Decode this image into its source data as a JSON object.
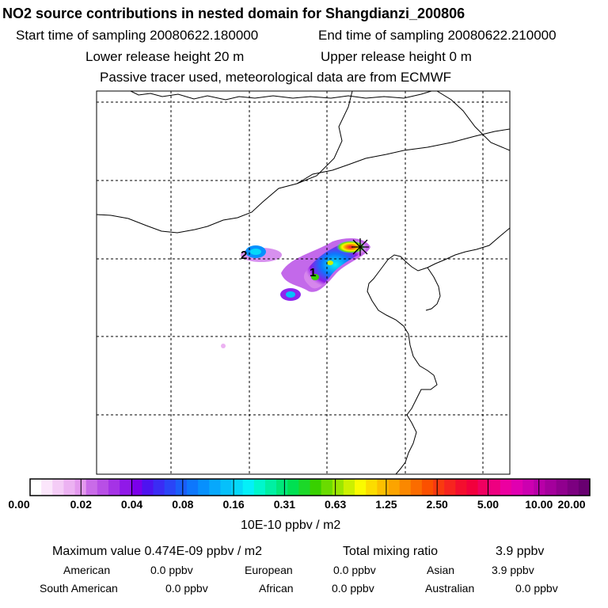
{
  "header": {
    "title": "NO2 source contributions in nested domain for Shangdianzi_200806",
    "start_label": "Start time of sampling 20080622.180000",
    "end_label": "End time of sampling 20080622.210000",
    "lower_label": "Lower release height   20 m",
    "upper_label": "Upper release height    0 m",
    "note": "Passive tracer used, meteorological data are from ECMWF"
  },
  "map": {
    "markers": [
      "1",
      "2"
    ],
    "receptor_symbol": "x-star-marker"
  },
  "colorbar": {
    "ticks": [
      "0.00",
      "0.02",
      "0.04",
      "0.08",
      "0.16",
      "0.31",
      "0.63",
      "1.25",
      "2.50",
      "5.00",
      "10.00",
      "20.00"
    ],
    "colors": [
      "#ffffff",
      "#fbe6fb",
      "#f4ccf6",
      "#ecb2f2",
      "#e399ee",
      "#c96be8",
      "#b84fe6",
      "#a533e6",
      "#9019e8",
      "#7b00ea",
      "#4e13f0",
      "#3b2cf4",
      "#2a45f7",
      "#1a5efa",
      "#0d77fd",
      "#0790fd",
      "#07a8fc",
      "#06c0fb",
      "#05d8f9",
      "#04f0f8",
      "#00f7cc",
      "#00f0a3",
      "#00e87a",
      "#00e052",
      "#1cd829",
      "#38d000",
      "#6adb00",
      "#9be600",
      "#ccf000",
      "#fbfb00",
      "#fcdc00",
      "#fcc000",
      "#fca400",
      "#fb8800",
      "#fb6c00",
      "#fb5000",
      "#f93a0f",
      "#f7241f",
      "#f40e2e",
      "#f2003c",
      "#f00060",
      "#ee0080",
      "#ec00a0",
      "#e000b0",
      "#cc00b0",
      "#b800a8",
      "#a4009c",
      "#90008e",
      "#7c0080",
      "#680070"
    ],
    "unit": "10E-10 ppbv / m2"
  },
  "summary": {
    "max_label": "Maximum value  0.474E-09 ppbv / m2",
    "total_label": "Total mixing ratio",
    "total_value": "3.9 ppbv",
    "regions_row1": [
      {
        "name": "American",
        "value": "0.0 ppbv"
      },
      {
        "name": "European",
        "value": "0.0 ppbv"
      },
      {
        "name": "Asian",
        "value": "3.9 ppbv"
      }
    ],
    "regions_row2": [
      {
        "name": "South American",
        "value": "0.0 ppbv"
      },
      {
        "name": "African",
        "value": "0.0 ppbv"
      },
      {
        "name": "Australian",
        "value": "0.0 ppbv"
      }
    ]
  }
}
